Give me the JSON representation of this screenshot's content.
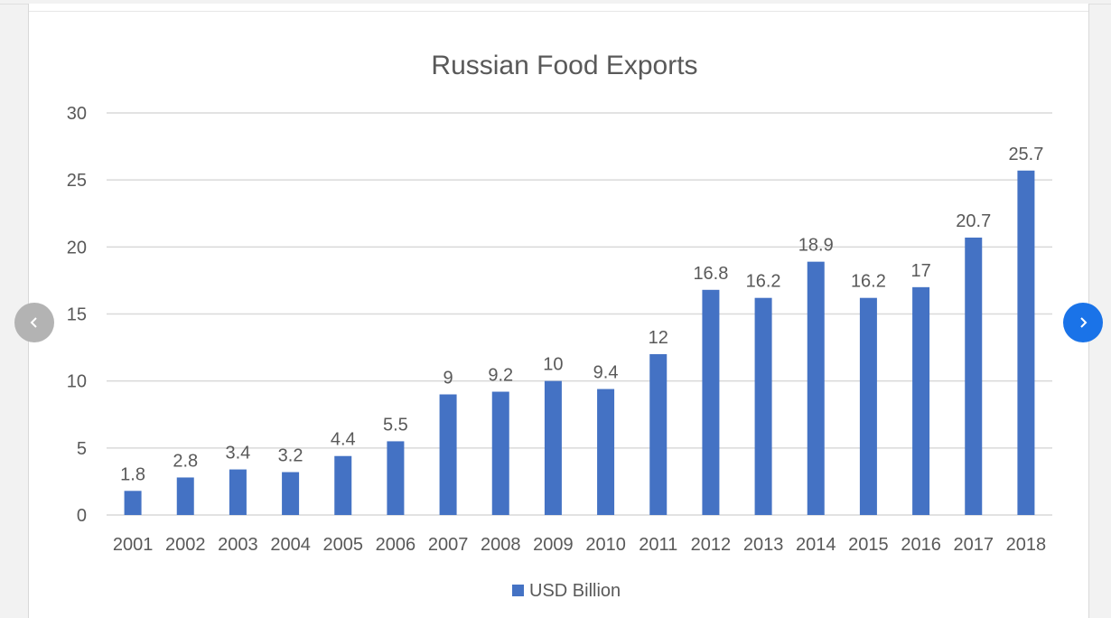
{
  "colors": {
    "bar": "#4472c4",
    "grid": "#d9d9d9",
    "text": "#595959",
    "nav_prev": "#b3b3b3",
    "nav_next": "#1a73e8"
  },
  "carousel": {
    "prev_icon": "chevron-left-icon",
    "next_icon": "chevron-right-icon"
  },
  "chart_data": {
    "type": "bar",
    "title": "Russian Food Exports",
    "categories": [
      "2001",
      "2002",
      "2003",
      "2004",
      "2005",
      "2006",
      "2007",
      "2008",
      "2009",
      "2010",
      "2011",
      "2012",
      "2013",
      "2014",
      "2015",
      "2016",
      "2017",
      "2018"
    ],
    "series": [
      {
        "name": "USD Billion",
        "values": [
          1.8,
          2.8,
          3.4,
          3.2,
          4.4,
          5.5,
          9,
          9.2,
          10,
          9.4,
          12,
          16.8,
          16.2,
          18.9,
          16.2,
          17,
          20.7,
          25.7
        ],
        "labels": [
          "1.8",
          "2.8",
          "3.4",
          "3.2",
          "4.4",
          "5.5",
          "9",
          "9.2",
          "10",
          "9.4",
          "12",
          "16.8",
          "16.2",
          "18.9",
          "16.2",
          "17",
          "20.7",
          "25.7"
        ]
      }
    ],
    "yticks": [
      "0",
      "5",
      "10",
      "15",
      "20",
      "25",
      "30"
    ],
    "ylim": [
      0,
      30
    ],
    "grid": true,
    "legend_position": "bottom"
  }
}
